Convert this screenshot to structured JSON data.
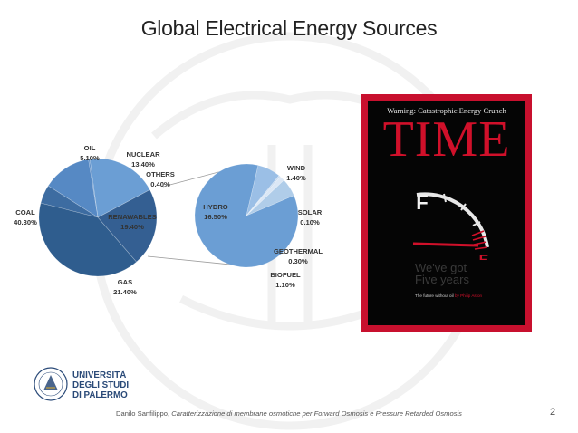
{
  "slide": {
    "title": "Global Electrical Energy Sources",
    "footer_author": "Danilo Sanfilippo,",
    "footer_thesis": "Caratterizzazione di membrane osmotiche per Forward Osmosis e Pressure Retarded Osmosis",
    "page_number": "2",
    "university": [
      "UNIVERSITÀ",
      "DEGLI STUDI",
      "DI PALERMO"
    ]
  },
  "magazine": {
    "warning": "Warning: Catastrophic Energy Crunch",
    "logo": "TIME",
    "gauge_f": "F",
    "gauge_e": "E",
    "headline_line1": "We've got",
    "headline_line2": "Five years",
    "subline": "The future without oil",
    "subline_link": "by Philip Aston",
    "colors": {
      "border": "#c8102e",
      "logo": "#d0102a"
    }
  },
  "colors": {
    "main_pie": [
      "#2f5d8e",
      "#4272a6",
      "#3a6699",
      "#6b9ed4"
    ],
    "sub_pie": [
      "#6b9ed4",
      "#9bbfe6",
      "#c8dbf0",
      "#dbe7f5",
      "#b0cde9"
    ]
  },
  "chart_data": {
    "type": "pie",
    "title": "Global Electrical Energy Sources",
    "main": {
      "slices": [
        {
          "label": "COAL",
          "value": 40.3,
          "text": "40.30%"
        },
        {
          "label": "GAS",
          "value": 21.4,
          "text": "21.40%"
        },
        {
          "label": "RENAWABLES",
          "value": 19.4,
          "text": "19.40%"
        },
        {
          "label": "NUCLEAR",
          "value": 13.4,
          "text": "13.40%"
        },
        {
          "label": "OIL",
          "value": 5.1,
          "text": "5.10%"
        },
        {
          "label": "OTHERS",
          "value": 0.4,
          "text": "0.40%"
        }
      ]
    },
    "breakdown": {
      "of": "RENAWABLES",
      "slices": [
        {
          "label": "HYDRO",
          "value": 16.5,
          "text": "16.50%"
        },
        {
          "label": "WIND",
          "value": 1.4,
          "text": "1.40%"
        },
        {
          "label": "SOLAR",
          "value": 0.1,
          "text": "0.10%"
        },
        {
          "label": "GEOTHERMAL",
          "value": 0.3,
          "text": "0.30%"
        },
        {
          "label": "BIOFUEL",
          "value": 1.1,
          "text": "1.10%"
        }
      ]
    }
  }
}
